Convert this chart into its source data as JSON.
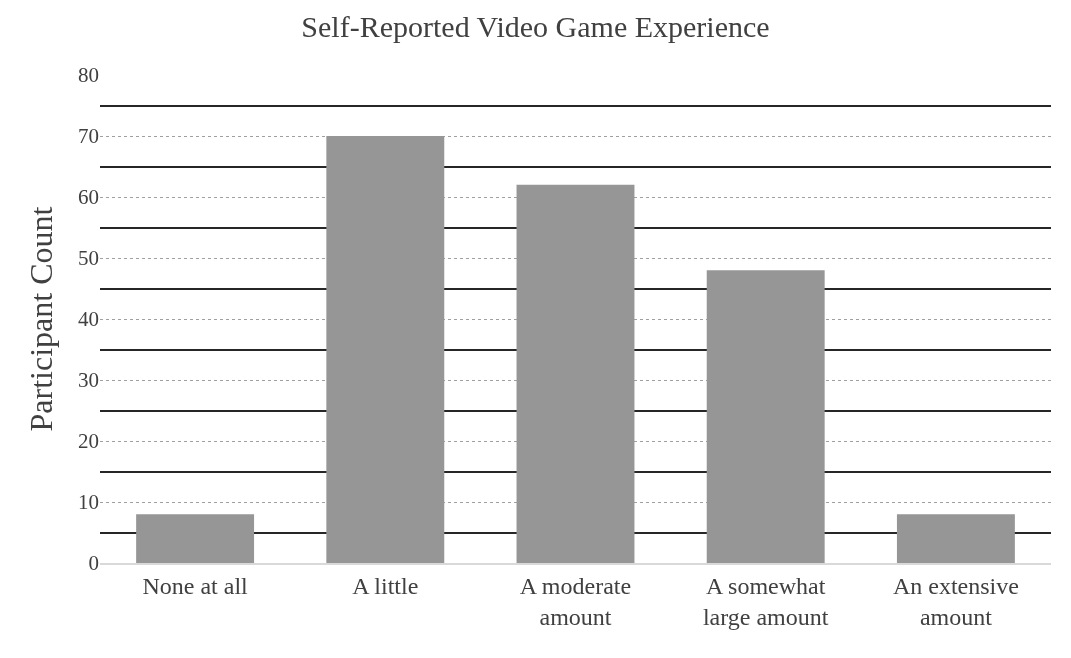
{
  "chart_data": {
    "type": "bar",
    "title": "Self-Reported Video Game Experience",
    "ylabel": "Participant Count",
    "categories": [
      "None at all",
      "A little",
      "A moderate amount",
      "A somewhat large amount",
      "An extensive amount"
    ],
    "values": [
      8,
      70,
      62,
      48,
      8
    ],
    "color": "#969696",
    "ylim": [
      0,
      80
    ],
    "yticks": [
      0,
      {
        "value": 5,
        "label": null
      },
      10,
      {
        "value": 15,
        "label": null
      },
      20,
      {
        "value": 25,
        "label": null
      },
      30,
      {
        "value": 35,
        "label": null
      },
      40,
      {
        "value": 45,
        "label": null
      },
      50,
      {
        "value": 55,
        "label": null
      },
      60,
      {
        "value": 65,
        "label": null
      },
      70,
      {
        "value": 75,
        "label": null
      },
      80
    ],
    "grid": true,
    "legend": false
  }
}
